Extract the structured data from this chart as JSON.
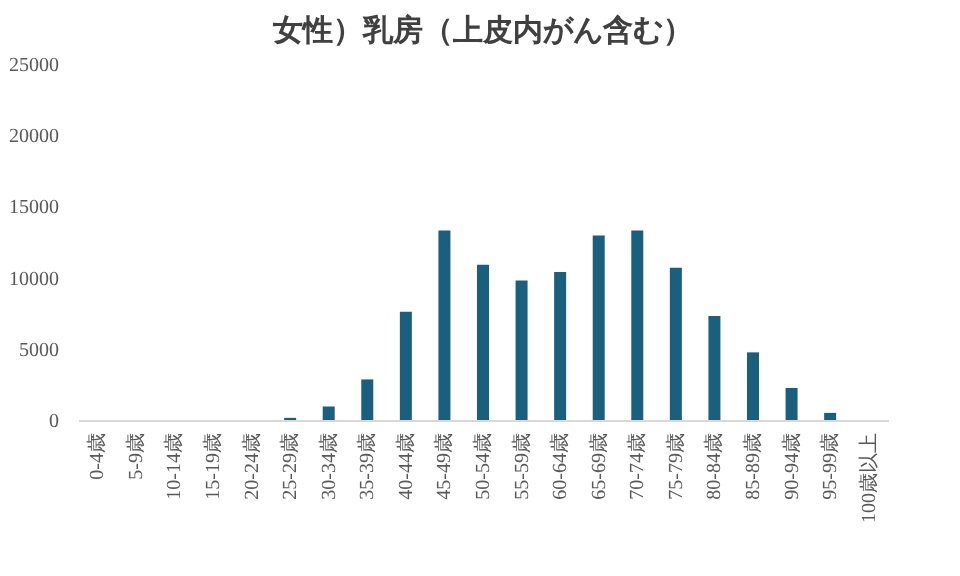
{
  "chart_data": {
    "type": "bar",
    "title": "女性）乳房（上皮内がん含む）",
    "categories": [
      "0-4歳",
      "5-9歳",
      "10-14歳",
      "15-19歳",
      "20-24歳",
      "25-29歳",
      "30-34歳",
      "35-39歳",
      "40-44歳",
      "45-49歳",
      "50-54歳",
      "55-59歳",
      "60-64歳",
      "65-69歳",
      "70-74歳",
      "75-79歳",
      "80-84歳",
      "85-89歳",
      "90-94歳",
      "95-99歳",
      "100歳以上"
    ],
    "values": [
      0,
      0,
      0,
      0,
      0,
      150,
      950,
      2850,
      7600,
      13300,
      10900,
      9800,
      10400,
      12950,
      13300,
      10700,
      7300,
      4750,
      2250,
      500,
      0
    ],
    "color": "#1b5f7f",
    "ylim": [
      0,
      25000
    ],
    "yticks": [
      0,
      5000,
      10000,
      15000,
      20000,
      25000
    ],
    "grid": false
  }
}
